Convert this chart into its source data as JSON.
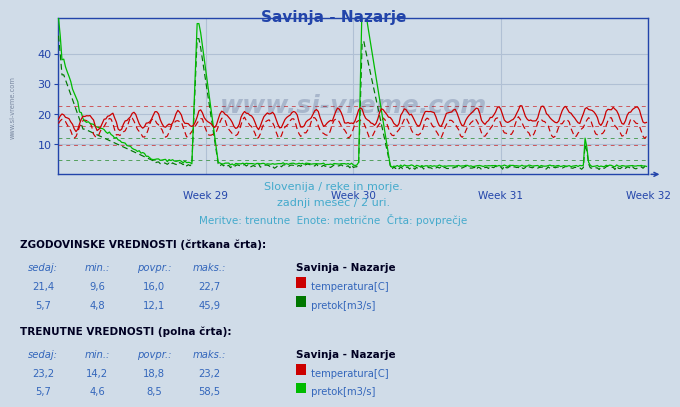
{
  "title": "Savinja - Nazarje",
  "title_color": "#2244aa",
  "bg_color": "#d0dce8",
  "subtitle1": "Slovenija / reke in morje.",
  "subtitle2": "zadnji mesec / 2 uri.",
  "subtitle3": "Meritve: trenutne  Enote: metrične  Črta: povprečje",
  "subtitle_color": "#44aacc",
  "axis_color": "#2244aa",
  "grid_color": "#b0c0d4",
  "temp_color": "#cc0000",
  "flow_color_hist": "#007700",
  "flow_color_curr": "#00bb00",
  "watermark_text": "www.si-vreme.com",
  "watermark_color": "#1a3066",
  "watermark_alpha": 0.22,
  "hline_temp_avg": 16.0,
  "hline_temp_min": 9.6,
  "hline_temp_max": 22.7,
  "hline_flow_avg": 12.1,
  "hline_flow_min": 4.8,
  "legend_hist_title": "ZGODOVINSKE VREDNOSTI (črtkana črta):",
  "legend_curr_title": "TRENUTNE VREDNOSTI (polna črta):",
  "legend_header": [
    "sedaj:",
    "min.:",
    "povpr.:",
    "maks.:"
  ],
  "legend_hist_temp": [
    "21,4",
    "9,6",
    "16,0",
    "22,7",
    "temperatura[C]"
  ],
  "legend_hist_flow": [
    "5,7",
    "4,8",
    "12,1",
    "45,9",
    "pretok[m3/s]"
  ],
  "legend_curr_temp": [
    "23,2",
    "14,2",
    "18,8",
    "23,2",
    "temperatura[C]"
  ],
  "legend_curr_flow": [
    "5,7",
    "4,6",
    "8,5",
    "58,5",
    "pretok[m3/s]"
  ],
  "legend_station": "Savinja - Nazarje",
  "week_labels": [
    "Week 29",
    "Week 30",
    "Week 31",
    "Week 32"
  ],
  "n_points": 336,
  "ylim": [
    0,
    52
  ],
  "side_wm": "www.si-vreme.com"
}
